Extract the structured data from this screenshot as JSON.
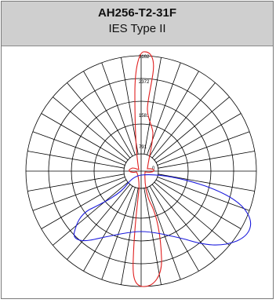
{
  "header": {
    "model": "AH256-T2-31F",
    "ies_type": "IES Type II"
  },
  "polar": {
    "ring_labels": [
      "3162",
      "2372",
      "1581",
      "791",
      "0"
    ],
    "grid_color": "#000000",
    "curves": [
      {
        "color": "#e02020"
      },
      {
        "color": "#1a1adc"
      }
    ]
  }
}
